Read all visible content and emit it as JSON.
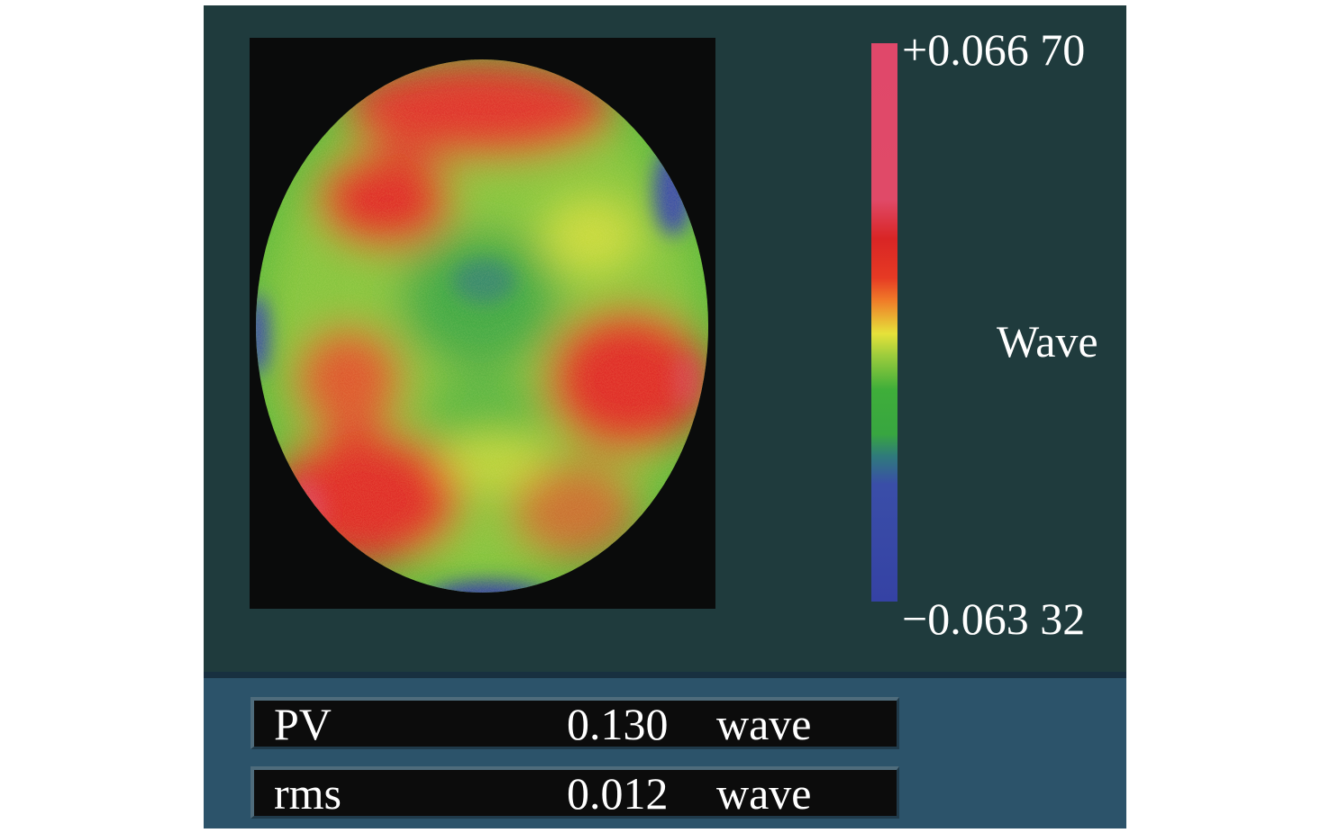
{
  "colorbar": {
    "max_label": "+0.066 70",
    "min_label": "−0.063 32",
    "unit_label": "Wave",
    "colors": [
      "#e0486a",
      "#d92525",
      "#f07a28",
      "#e6e23a",
      "#3fae3a",
      "#3542a4"
    ]
  },
  "stats": [
    {
      "name": "PV",
      "value": "0.130",
      "unit": "wave"
    },
    {
      "name": "rms",
      "value": "0.012",
      "unit": "wave"
    }
  ]
}
